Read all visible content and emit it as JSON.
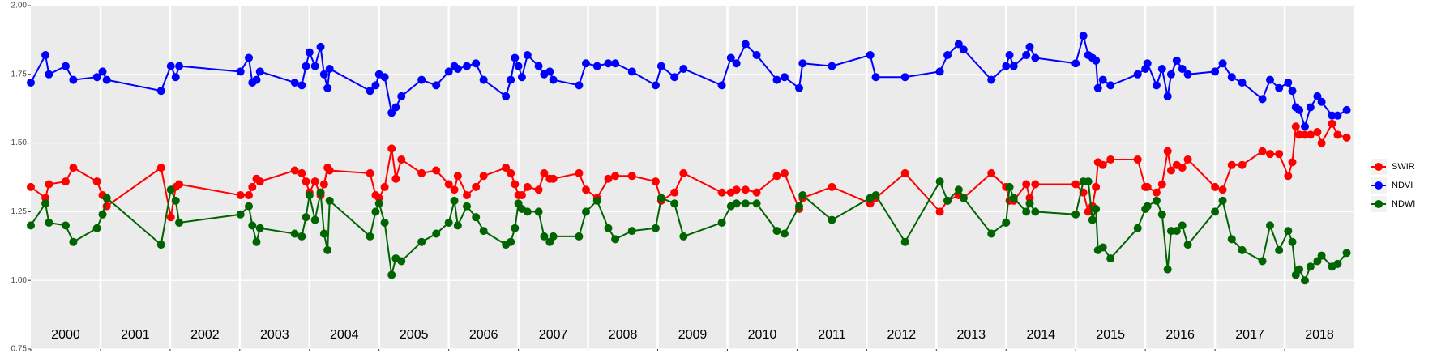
{
  "chart_data": {
    "type": "line",
    "year_labels": [
      "2000",
      "2001",
      "2002",
      "2003",
      "2004",
      "2005",
      "2006",
      "2007",
      "2008",
      "2009",
      "2010",
      "2011",
      "2012",
      "2013",
      "2014",
      "2015",
      "2016",
      "2017",
      "2018"
    ],
    "x": [
      2000.0,
      2000.21,
      2000.26,
      2000.5,
      2000.61,
      2000.95,
      2001.03,
      2001.09,
      2001.87,
      2002.01,
      2002.08,
      2002.13,
      2003.01,
      2003.13,
      2003.18,
      2003.24,
      2003.29,
      2003.79,
      2003.89,
      2003.95,
      2004.0,
      2004.08,
      2004.16,
      2004.21,
      2004.26,
      2004.29,
      2004.87,
      2004.95,
      2005.0,
      2005.08,
      2005.18,
      2005.24,
      2005.32,
      2005.61,
      2005.82,
      2006.0,
      2006.08,
      2006.13,
      2006.26,
      2006.39,
      2006.5,
      2006.82,
      2006.89,
      2006.95,
      2007.0,
      2007.05,
      2007.13,
      2007.29,
      2007.37,
      2007.45,
      2007.5,
      2007.87,
      2007.97,
      2008.13,
      2008.29,
      2008.39,
      2008.63,
      2008.97,
      2009.05,
      2009.24,
      2009.37,
      2009.92,
      2010.05,
      2010.13,
      2010.26,
      2010.42,
      2010.71,
      2010.82,
      2011.03,
      2011.08,
      2011.5,
      2012.05,
      2012.13,
      2012.55,
      2013.05,
      2013.16,
      2013.32,
      2013.39,
      2013.79,
      2014.0,
      2014.05,
      2014.11,
      2014.29,
      2014.34,
      2014.42,
      2015.0,
      2015.11,
      2015.18,
      2015.24,
      2015.29,
      2015.32,
      2015.39,
      2015.5,
      2015.89,
      2016.0,
      2016.03,
      2016.16,
      2016.24,
      2016.32,
      2016.37,
      2016.45,
      2016.53,
      2016.61,
      2017.0,
      2017.11,
      2017.24,
      2017.39,
      2017.68,
      2017.79,
      2017.92,
      2018.05,
      2018.11,
      2018.16,
      2018.21,
      2018.29,
      2018.37,
      2018.47,
      2018.53,
      2018.68,
      2018.76,
      2018.89
    ],
    "series": [
      {
        "name": "SWIR",
        "color": "#ff0000",
        "values": [
          1.34,
          1.3,
          1.35,
          1.36,
          1.41,
          1.36,
          1.31,
          1.27,
          1.41,
          1.23,
          1.34,
          1.35,
          1.31,
          1.31,
          1.34,
          1.37,
          1.36,
          1.4,
          1.39,
          1.36,
          1.32,
          1.36,
          1.31,
          1.35,
          1.41,
          1.4,
          1.39,
          1.31,
          1.3,
          1.34,
          1.48,
          1.37,
          1.44,
          1.39,
          1.4,
          1.35,
          1.33,
          1.38,
          1.31,
          1.34,
          1.38,
          1.41,
          1.39,
          1.35,
          1.31,
          1.31,
          1.34,
          1.33,
          1.39,
          1.37,
          1.37,
          1.39,
          1.33,
          1.3,
          1.37,
          1.38,
          1.38,
          1.36,
          1.29,
          1.32,
          1.39,
          1.32,
          1.32,
          1.33,
          1.33,
          1.32,
          1.38,
          1.39,
          1.26,
          1.3,
          1.34,
          1.28,
          1.3,
          1.39,
          1.25,
          1.29,
          1.31,
          1.3,
          1.39,
          1.34,
          1.29,
          1.29,
          1.35,
          1.3,
          1.35,
          1.35,
          1.32,
          1.25,
          1.27,
          1.34,
          1.43,
          1.42,
          1.44,
          1.44,
          1.34,
          1.34,
          1.32,
          1.35,
          1.47,
          1.4,
          1.42,
          1.41,
          1.44,
          1.34,
          1.33,
          1.42,
          1.42,
          1.47,
          1.46,
          1.46,
          1.38,
          1.43,
          1.56,
          1.53,
          1.53,
          1.53,
          1.54,
          1.5,
          1.57,
          1.53,
          1.52
        ]
      },
      {
        "name": "NDVI",
        "color": "#0000ff",
        "values": [
          1.72,
          1.82,
          1.75,
          1.78,
          1.73,
          1.74,
          1.76,
          1.73,
          1.69,
          1.78,
          1.74,
          1.78,
          1.76,
          1.81,
          1.72,
          1.73,
          1.76,
          1.72,
          1.71,
          1.78,
          1.83,
          1.78,
          1.85,
          1.75,
          1.7,
          1.77,
          1.69,
          1.71,
          1.75,
          1.74,
          1.61,
          1.63,
          1.67,
          1.73,
          1.71,
          1.76,
          1.78,
          1.77,
          1.78,
          1.79,
          1.73,
          1.67,
          1.73,
          1.81,
          1.78,
          1.74,
          1.82,
          1.78,
          1.75,
          1.76,
          1.73,
          1.71,
          1.79,
          1.78,
          1.79,
          1.79,
          1.76,
          1.71,
          1.78,
          1.74,
          1.77,
          1.71,
          1.81,
          1.79,
          1.86,
          1.82,
          1.73,
          1.74,
          1.7,
          1.79,
          1.78,
          1.82,
          1.74,
          1.74,
          1.76,
          1.82,
          1.86,
          1.84,
          1.73,
          1.78,
          1.82,
          1.78,
          1.82,
          1.85,
          1.81,
          1.79,
          1.89,
          1.82,
          1.81,
          1.8,
          1.7,
          1.73,
          1.71,
          1.75,
          1.77,
          1.79,
          1.71,
          1.77,
          1.67,
          1.75,
          1.8,
          1.77,
          1.75,
          1.76,
          1.79,
          1.74,
          1.72,
          1.66,
          1.73,
          1.7,
          1.72,
          1.69,
          1.63,
          1.62,
          1.56,
          1.63,
          1.67,
          1.65,
          1.6,
          1.6,
          1.62
        ]
      },
      {
        "name": "NDWI",
        "color": "#006400",
        "values": [
          1.2,
          1.28,
          1.21,
          1.2,
          1.14,
          1.19,
          1.24,
          1.3,
          1.13,
          1.33,
          1.29,
          1.21,
          1.24,
          1.27,
          1.2,
          1.14,
          1.19,
          1.17,
          1.16,
          1.23,
          1.31,
          1.22,
          1.32,
          1.17,
          1.11,
          1.29,
          1.16,
          1.25,
          1.28,
          1.21,
          1.02,
          1.08,
          1.07,
          1.14,
          1.17,
          1.21,
          1.29,
          1.2,
          1.27,
          1.23,
          1.18,
          1.13,
          1.14,
          1.19,
          1.28,
          1.26,
          1.25,
          1.25,
          1.16,
          1.14,
          1.16,
          1.16,
          1.25,
          1.29,
          1.19,
          1.15,
          1.18,
          1.19,
          1.3,
          1.28,
          1.16,
          1.21,
          1.27,
          1.28,
          1.28,
          1.28,
          1.18,
          1.17,
          1.27,
          1.31,
          1.22,
          1.3,
          1.31,
          1.14,
          1.36,
          1.29,
          1.33,
          1.3,
          1.17,
          1.21,
          1.34,
          1.3,
          1.25,
          1.28,
          1.25,
          1.24,
          1.36,
          1.36,
          1.22,
          1.26,
          1.11,
          1.12,
          1.08,
          1.19,
          1.26,
          1.27,
          1.29,
          1.24,
          1.04,
          1.18,
          1.18,
          1.2,
          1.13,
          1.25,
          1.29,
          1.15,
          1.11,
          1.07,
          1.2,
          1.11,
          1.18,
          1.14,
          1.02,
          1.04,
          1.0,
          1.05,
          1.07,
          1.09,
          1.05,
          1.06,
          1.1
        ]
      }
    ],
    "xlim": [
      2000,
      2019
    ],
    "ylim": [
      0.75,
      2.0
    ],
    "yticks": [
      {
        "value": 0.75,
        "label": "0.75"
      },
      {
        "value": 1.0,
        "label": "1.00"
      },
      {
        "value": 1.25,
        "label": "1.25"
      },
      {
        "value": 1.5,
        "label": "1.50"
      },
      {
        "value": 1.75,
        "label": "1.75"
      },
      {
        "value": 2.0,
        "label": "2.00"
      }
    ],
    "grid": true
  }
}
